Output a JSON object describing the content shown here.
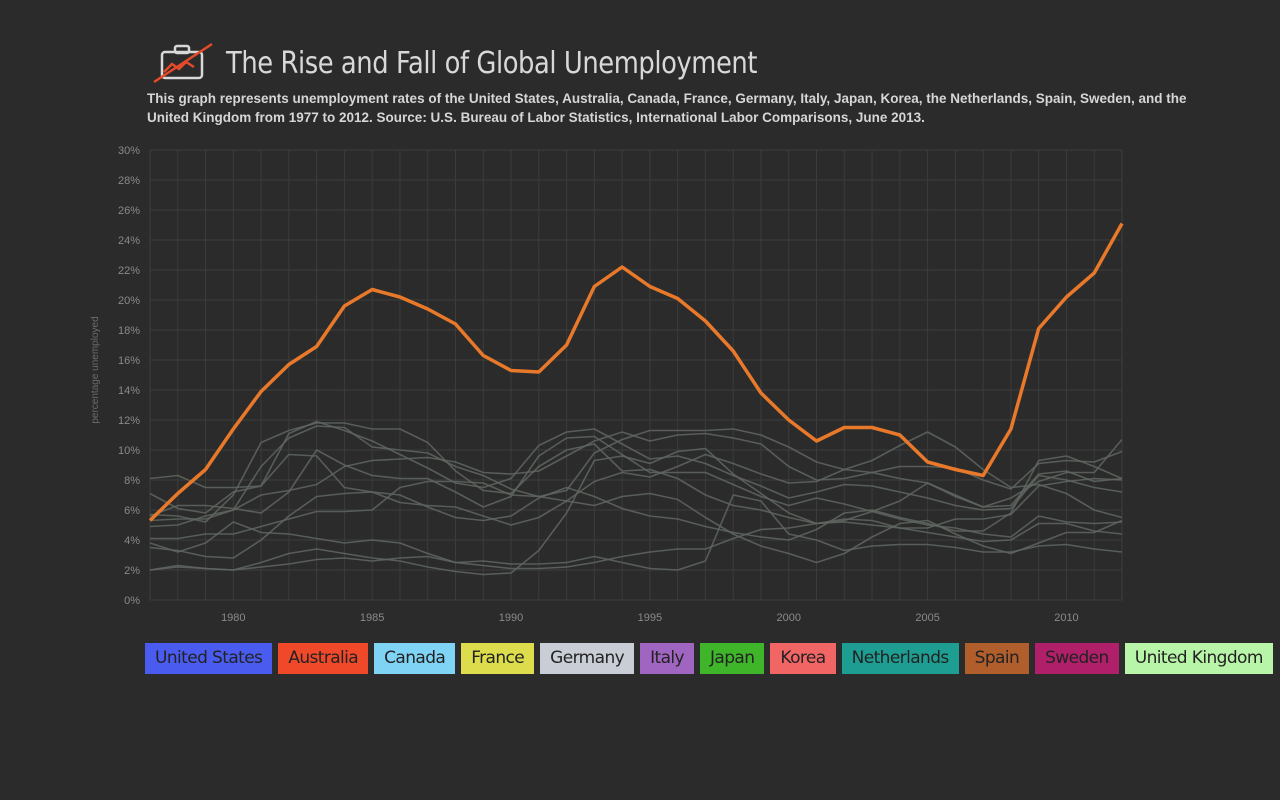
{
  "header": {
    "title": "The Rise and Fall of Global Unemployment",
    "description": "This graph represents unemployment rates of the United States, Australia, Canada, France, Germany, Italy, Japan, Korea, the Netherlands, Spain, Sweden, and the United Kingdom from 1977 to 2012. Source: U.S. Bureau of Labor Statistics, International Labor Comparisons, June 2013.",
    "logo_icon": "briefcase-chart-icon"
  },
  "colors": {
    "background": "#2b2b2b",
    "grid": "#3c3c3c",
    "highlight": "#e8792a",
    "muted_line": "#5f6660"
  },
  "legend": [
    {
      "name": "United States",
      "color": "#4a5cf0"
    },
    {
      "name": "Australia",
      "color": "#f0492a"
    },
    {
      "name": "Canada",
      "color": "#7fd3f5"
    },
    {
      "name": "France",
      "color": "#dcdc4c"
    },
    {
      "name": "Germany",
      "color": "#c9cdd6"
    },
    {
      "name": "Italy",
      "color": "#a065c0"
    },
    {
      "name": "Japan",
      "color": "#3fb52a"
    },
    {
      "name": "Korea",
      "color": "#f26565"
    },
    {
      "name": "Netherlands",
      "color": "#1e9e93"
    },
    {
      "name": "Spain",
      "color": "#b05e2c"
    },
    {
      "name": "Sweden",
      "color": "#b01f6a"
    },
    {
      "name": "United Kingdom",
      "color": "#b8f5a8"
    }
  ],
  "chart_data": {
    "type": "line",
    "ylabel": "percentage unemployed",
    "xlabel": "",
    "xlim": [
      1977,
      2012
    ],
    "ylim": [
      0,
      30
    ],
    "x_ticks": [
      "1980",
      "1985",
      "1990",
      "1995",
      "2000",
      "2005",
      "2010"
    ],
    "y_ticks": [
      "0%",
      "2%",
      "4%",
      "6%",
      "8%",
      "10%",
      "12%",
      "14%",
      "16%",
      "18%",
      "20%",
      "22%",
      "24%",
      "26%",
      "28%",
      "30%"
    ],
    "grid": true,
    "highlighted_series": "Spain",
    "x": [
      1977,
      1978,
      1979,
      1980,
      1981,
      1982,
      1983,
      1984,
      1985,
      1986,
      1987,
      1988,
      1989,
      1990,
      1991,
      1992,
      1993,
      1994,
      1995,
      1996,
      1997,
      1998,
      1999,
      2000,
      2001,
      2002,
      2003,
      2004,
      2005,
      2006,
      2007,
      2008,
      2009,
      2010,
      2011,
      2012
    ],
    "series": [
      {
        "name": "United States",
        "values": [
          7.1,
          6.1,
          5.8,
          7.2,
          7.6,
          9.7,
          9.6,
          7.5,
          7.2,
          7.0,
          6.2,
          5.5,
          5.3,
          5.6,
          6.8,
          7.5,
          6.9,
          6.1,
          5.6,
          5.4,
          4.9,
          4.5,
          4.2,
          4.0,
          4.7,
          5.8,
          6.0,
          5.5,
          5.1,
          4.6,
          4.6,
          5.8,
          9.3,
          9.6,
          8.9,
          8.1
        ]
      },
      {
        "name": "Australia",
        "values": [
          5.6,
          6.3,
          6.3,
          6.1,
          5.8,
          7.2,
          10.0,
          9.0,
          8.3,
          8.1,
          8.1,
          7.2,
          6.2,
          6.9,
          9.6,
          10.8,
          10.9,
          9.7,
          8.5,
          8.5,
          8.5,
          7.7,
          6.9,
          6.3,
          6.8,
          6.4,
          5.9,
          5.4,
          5.0,
          4.8,
          4.4,
          4.2,
          5.6,
          5.2,
          5.1,
          5.2
        ]
      },
      {
        "name": "Canada",
        "values": [
          8.1,
          8.3,
          7.5,
          7.5,
          7.6,
          11.1,
          11.9,
          11.3,
          10.6,
          9.7,
          8.8,
          7.8,
          7.5,
          8.1,
          10.3,
          11.2,
          11.4,
          10.4,
          9.4,
          9.6,
          9.1,
          8.3,
          7.6,
          6.8,
          7.2,
          7.7,
          7.6,
          7.2,
          6.8,
          6.3,
          6.0,
          6.1,
          8.3,
          8.0,
          7.5,
          7.2
        ]
      },
      {
        "name": "France",
        "values": [
          4.9,
          5.0,
          5.6,
          6.0,
          7.0,
          7.3,
          7.7,
          8.9,
          9.3,
          9.4,
          9.5,
          9.2,
          8.5,
          8.4,
          8.6,
          9.6,
          10.6,
          11.2,
          10.6,
          11.0,
          11.1,
          10.8,
          10.4,
          8.9,
          8.0,
          8.1,
          8.5,
          8.9,
          8.9,
          8.8,
          8.0,
          7.4,
          9.1,
          9.3,
          9.2,
          9.9
        ]
      },
      {
        "name": "Germany",
        "values": [
          3.5,
          3.3,
          2.9,
          2.8,
          4.0,
          5.6,
          6.9,
          7.1,
          7.2,
          6.5,
          6.3,
          6.2,
          5.6,
          5.0,
          5.5,
          6.6,
          7.9,
          8.5,
          8.2,
          8.9,
          9.7,
          9.1,
          8.4,
          7.8,
          7.9,
          8.7,
          9.3,
          10.3,
          11.2,
          10.2,
          8.7,
          7.5,
          7.7,
          7.1,
          6.0,
          5.5
        ]
      },
      {
        "name": "Italy",
        "values": [
          4.1,
          4.1,
          4.4,
          4.4,
          4.9,
          5.4,
          5.9,
          5.9,
          6.0,
          7.5,
          7.9,
          7.9,
          7.8,
          7.0,
          6.9,
          7.3,
          9.8,
          10.7,
          11.3,
          11.3,
          11.3,
          11.4,
          11.0,
          10.2,
          9.2,
          8.7,
          8.5,
          8.1,
          7.8,
          6.9,
          6.2,
          6.8,
          7.9,
          8.5,
          8.5,
          10.7
        ]
      },
      {
        "name": "Japan",
        "values": [
          2.0,
          2.2,
          2.1,
          2.0,
          2.2,
          2.4,
          2.7,
          2.8,
          2.6,
          2.8,
          2.9,
          2.5,
          2.3,
          2.1,
          2.1,
          2.2,
          2.5,
          2.9,
          3.2,
          3.4,
          3.4,
          4.1,
          4.7,
          4.8,
          5.1,
          5.4,
          5.3,
          4.8,
          4.5,
          4.2,
          3.9,
          4.0,
          5.1,
          5.1,
          4.6,
          4.4
        ]
      },
      {
        "name": "Korea",
        "values": [
          3.8,
          3.2,
          3.8,
          5.2,
          4.5,
          4.4,
          4.1,
          3.8,
          4.0,
          3.8,
          3.1,
          2.5,
          2.6,
          2.4,
          2.4,
          2.5,
          2.9,
          2.5,
          2.1,
          2.0,
          2.6,
          7.0,
          6.6,
          4.4,
          4.0,
          3.3,
          3.6,
          3.7,
          3.7,
          3.5,
          3.2,
          3.2,
          3.6,
          3.7,
          3.4,
          3.2
        ]
      },
      {
        "name": "Netherlands",
        "values": [
          5.3,
          5.4,
          5.4,
          6.0,
          8.9,
          10.8,
          11.6,
          11.5,
          10.2,
          10.0,
          9.8,
          8.9,
          8.3,
          7.4,
          6.9,
          6.6,
          6.3,
          6.9,
          7.1,
          6.7,
          5.5,
          4.4,
          3.6,
          3.1,
          2.5,
          3.1,
          4.2,
          5.1,
          5.3,
          4.4,
          3.6,
          3.1,
          3.8,
          4.5,
          4.5,
          5.3
        ]
      },
      {
        "name": "Spain",
        "values": [
          5.3,
          7.1,
          8.7,
          11.4,
          13.9,
          15.7,
          16.9,
          19.6,
          20.7,
          20.2,
          19.4,
          18.4,
          16.3,
          15.3,
          15.2,
          17.0,
          20.9,
          22.2,
          20.9,
          20.1,
          18.6,
          16.6,
          13.8,
          12.0,
          10.6,
          11.5,
          11.5,
          11.0,
          9.2,
          8.7,
          8.3,
          11.4,
          18.1,
          20.2,
          21.8,
          25.1
        ]
      },
      {
        "name": "Sweden",
        "values": [
          2.0,
          2.3,
          2.1,
          2.0,
          2.5,
          3.1,
          3.4,
          3.1,
          2.8,
          2.6,
          2.2,
          1.9,
          1.7,
          1.8,
          3.3,
          5.8,
          9.3,
          9.6,
          9.1,
          9.9,
          10.1,
          8.4,
          7.1,
          5.8,
          5.1,
          5.3,
          5.9,
          6.6,
          7.8,
          7.0,
          6.2,
          6.3,
          8.4,
          8.6,
          7.9,
          8.1
        ]
      },
      {
        "name": "United Kingdom",
        "values": [
          5.7,
          5.6,
          5.2,
          7.0,
          10.5,
          11.3,
          11.8,
          11.8,
          11.4,
          11.4,
          10.5,
          8.6,
          7.3,
          7.1,
          8.9,
          10.0,
          10.4,
          8.6,
          8.7,
          8.1,
          7.0,
          6.3,
          6.0,
          5.5,
          5.1,
          5.2,
          5.0,
          4.8,
          4.8,
          5.4,
          5.4,
          5.7,
          7.6,
          7.9,
          8.1,
          8.0
        ]
      }
    ]
  }
}
